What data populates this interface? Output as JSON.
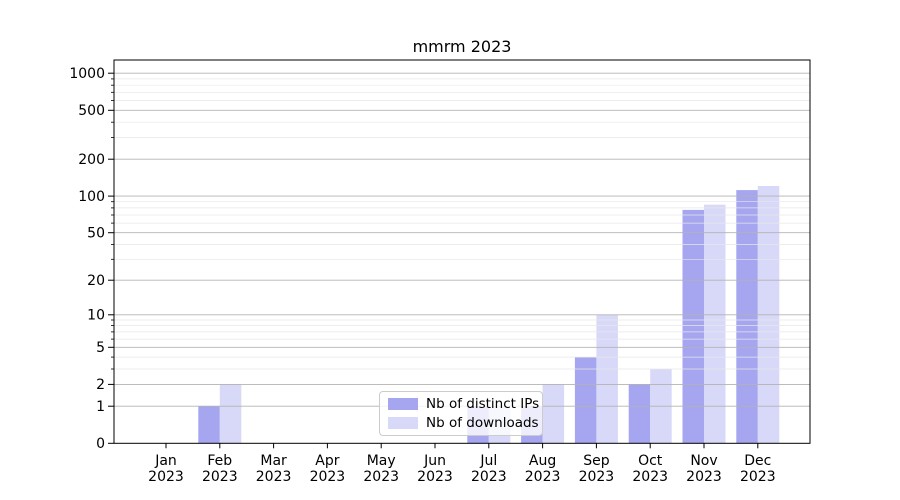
{
  "figure": {
    "background": "#ffffff",
    "text_color": "#000000"
  },
  "chart_data": {
    "type": "bar",
    "title": "mmrm 2023",
    "categories": [
      "Jan",
      "Feb",
      "Mar",
      "Apr",
      "May",
      "Jun",
      "Jul",
      "Aug",
      "Sep",
      "Oct",
      "Nov",
      "Dec"
    ],
    "category_year": "2023",
    "series": [
      {
        "name": "Nb of distinct IPs",
        "color": "#a5a5f0",
        "values": [
          0,
          1,
          0,
          0,
          0,
          0,
          1,
          1,
          4,
          2,
          77,
          112
        ]
      },
      {
        "name": "Nb of downloads",
        "color": "#d8d8f8",
        "values": [
          0,
          2,
          0,
          0,
          0,
          0,
          1,
          2,
          10,
          3,
          85,
          121
        ]
      }
    ],
    "yscale": "log1p",
    "ylim": [
      0,
      1280
    ],
    "y_major_ticks": [
      0,
      1,
      2,
      5,
      10,
      20,
      50,
      100,
      200,
      500,
      1000
    ],
    "y_minor_ticks": [
      3,
      4,
      6,
      7,
      8,
      9,
      30,
      40,
      60,
      70,
      80,
      90,
      300,
      400,
      600,
      700,
      800,
      900
    ],
    "grid": {
      "major_color": "#b3b3b3",
      "minor_color": "#e7e7e7"
    },
    "axis_color": "#000000",
    "legend_position": "lower center"
  }
}
